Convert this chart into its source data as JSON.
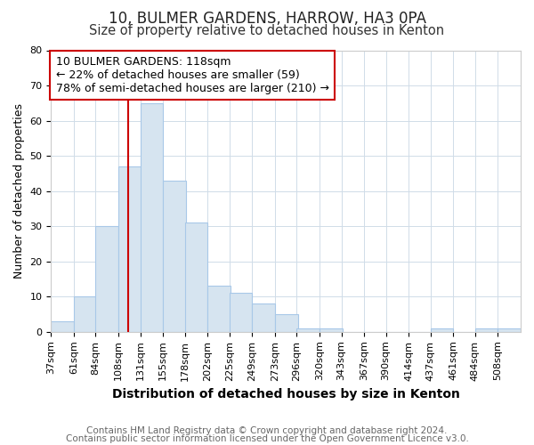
{
  "title": "10, BULMER GARDENS, HARROW, HA3 0PA",
  "subtitle": "Size of property relative to detached houses in Kenton",
  "xlabel": "Distribution of detached houses by size in Kenton",
  "ylabel": "Number of detached properties",
  "bin_labels": [
    "37sqm",
    "61sqm",
    "84sqm",
    "108sqm",
    "131sqm",
    "155sqm",
    "178sqm",
    "202sqm",
    "225sqm",
    "249sqm",
    "273sqm",
    "296sqm",
    "320sqm",
    "343sqm",
    "367sqm",
    "390sqm",
    "414sqm",
    "437sqm",
    "461sqm",
    "484sqm",
    "508sqm"
  ],
  "bin_edges": [
    37,
    61,
    84,
    108,
    131,
    155,
    178,
    202,
    225,
    249,
    273,
    296,
    320,
    343,
    367,
    390,
    414,
    437,
    461,
    484,
    508
  ],
  "counts": [
    3,
    10,
    30,
    47,
    65,
    43,
    31,
    13,
    11,
    8,
    5,
    1,
    1,
    0,
    0,
    0,
    0,
    1,
    0,
    1,
    1
  ],
  "bar_color": "#d6e4f0",
  "bar_edge_color": "#a8c8e8",
  "red_line_x": 118,
  "annotation_title": "10 BULMER GARDENS: 118sqm",
  "annotation_line1": "← 22% of detached houses are smaller (59)",
  "annotation_line2": "78% of semi-detached houses are larger (210) →",
  "annotation_box_color": "#ffffff",
  "annotation_box_edge": "#cc0000",
  "red_line_color": "#cc0000",
  "ylim": [
    0,
    80
  ],
  "yticks": [
    0,
    10,
    20,
    30,
    40,
    50,
    60,
    70,
    80
  ],
  "footer1": "Contains HM Land Registry data © Crown copyright and database right 2024.",
  "footer2": "Contains public sector information licensed under the Open Government Licence v3.0.",
  "bg_color": "#ffffff",
  "plot_bg_color": "#ffffff",
  "title_fontsize": 12,
  "subtitle_fontsize": 10.5,
  "xlabel_fontsize": 10,
  "ylabel_fontsize": 9,
  "footer_fontsize": 7.5,
  "tick_fontsize": 8,
  "annotation_fontsize": 9,
  "grid_color": "#d0dce8"
}
